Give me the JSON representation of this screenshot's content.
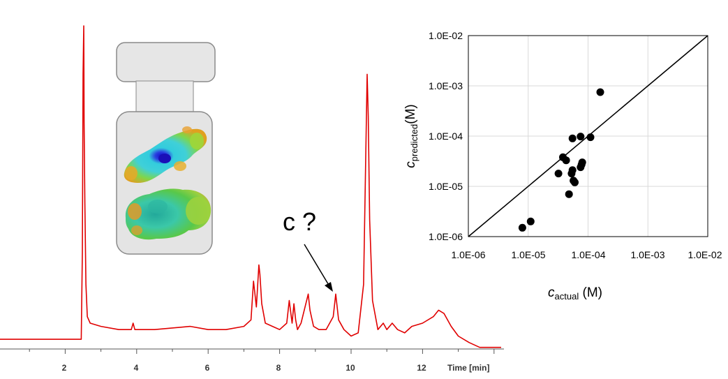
{
  "chromatogram": {
    "x_ticks": [
      "2",
      "4",
      "6",
      "8",
      "10",
      "12"
    ],
    "x_label": "Time [min]",
    "annotation": "c ?",
    "line_color": "#e00000",
    "chart_data": {
      "type": "line",
      "xlabel": "Time [min]",
      "xlim": [
        0,
        14.2
      ],
      "ylim": [
        0,
        100
      ],
      "x": [
        0,
        2.45,
        2.48,
        2.5,
        2.52,
        2.53,
        2.55,
        2.58,
        2.62,
        2.7,
        3.0,
        3.5,
        3.85,
        3.9,
        3.95,
        4.5,
        5.5,
        6.0,
        6.5,
        7.0,
        7.2,
        7.27,
        7.35,
        7.42,
        7.45,
        7.5,
        7.6,
        7.8,
        8.0,
        8.2,
        8.27,
        8.35,
        8.4,
        8.45,
        8.5,
        8.6,
        8.8,
        8.85,
        8.95,
        9.1,
        9.3,
        9.5,
        9.57,
        9.65,
        9.8,
        10.0,
        10.2,
        10.35,
        10.45,
        10.48,
        10.52,
        10.6,
        10.75,
        10.9,
        11.0,
        11.15,
        11.3,
        11.5,
        11.7,
        12.0,
        12.3,
        12.45,
        12.6,
        12.8,
        13.0,
        13.3,
        13.6,
        14.2
      ],
      "y": [
        3,
        3,
        30,
        85,
        100,
        70,
        45,
        20,
        10,
        8,
        7,
        6,
        6,
        8,
        6,
        6,
        7,
        6,
        6,
        7,
        9,
        21,
        13,
        26,
        23,
        14,
        8,
        7,
        6,
        8,
        15,
        8,
        14,
        9,
        6,
        8,
        17,
        12,
        7,
        6,
        6,
        10,
        17,
        9,
        6,
        4,
        5,
        20,
        85,
        72,
        40,
        15,
        6,
        8,
        6,
        8,
        6,
        5,
        7,
        8,
        10,
        12,
        11,
        7,
        4,
        2,
        0.5,
        0.5
      ]
    }
  },
  "scatter": {
    "x_ticks": [
      "1.0E-06",
      "1.0E-05",
      "1.0E-04",
      "1.0E-03",
      "1.0E-02"
    ],
    "y_ticks": [
      "1.0E-06",
      "1.0E-05",
      "1.0E-04",
      "1.0E-03",
      "1.0E-02"
    ],
    "xlabel_main": "c",
    "xlabel_sub": "actual",
    "xlabel_unit": " (M)",
    "ylabel_main": "c",
    "ylabel_sub": "predicted",
    "ylabel_unit": "(M)",
    "chart_data": {
      "type": "scatter",
      "xscale": "log",
      "yscale": "log",
      "xlim": [
        1e-06,
        0.01
      ],
      "ylim": [
        1e-06,
        0.01
      ],
      "grid": true,
      "reference_line": "y = x",
      "x": [
        8e-06,
        1.1e-05,
        3.2e-05,
        3.8e-05,
        4.3e-05,
        4.8e-05,
        5.3e-05,
        5.5e-05,
        5.7e-05,
        6e-05,
        7.5e-05,
        7.8e-05,
        8e-05,
        5.5e-05,
        7.5e-05,
        0.00011,
        0.00016
      ],
      "y": [
        1.5e-06,
        2e-06,
        1.8e-05,
        3.8e-05,
        3.3e-05,
        7e-06,
        1.8e-05,
        2.1e-05,
        1.3e-05,
        1.2e-05,
        2.4e-05,
        2.7e-05,
        3e-05,
        9e-05,
        9.8e-05,
        9.5e-05,
        0.00075
      ]
    }
  }
}
